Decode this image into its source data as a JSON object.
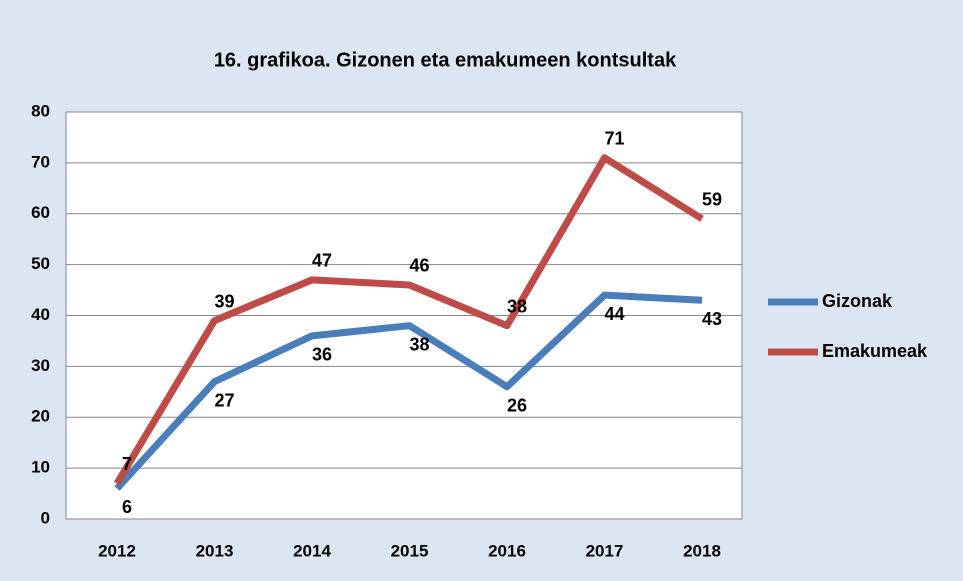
{
  "chart_data": {
    "type": "line",
    "title": "16. grafikoa. Gizonen eta emakumeen kontsultak",
    "categories": [
      "2012",
      "2013",
      "2014",
      "2015",
      "2016",
      "2017",
      "2018"
    ],
    "series": [
      {
        "name": "Gizonak",
        "color": "#4a7ebb",
        "values": [
          6,
          27,
          36,
          38,
          26,
          44,
          43
        ]
      },
      {
        "name": "Emakumeak",
        "color": "#be4b48",
        "values": [
          7,
          39,
          47,
          46,
          38,
          71,
          59
        ]
      }
    ],
    "ylim": [
      0,
      80
    ],
    "yticks": [
      0,
      10,
      20,
      30,
      40,
      50,
      60,
      70,
      80
    ],
    "grid": true,
    "legend": "right"
  }
}
